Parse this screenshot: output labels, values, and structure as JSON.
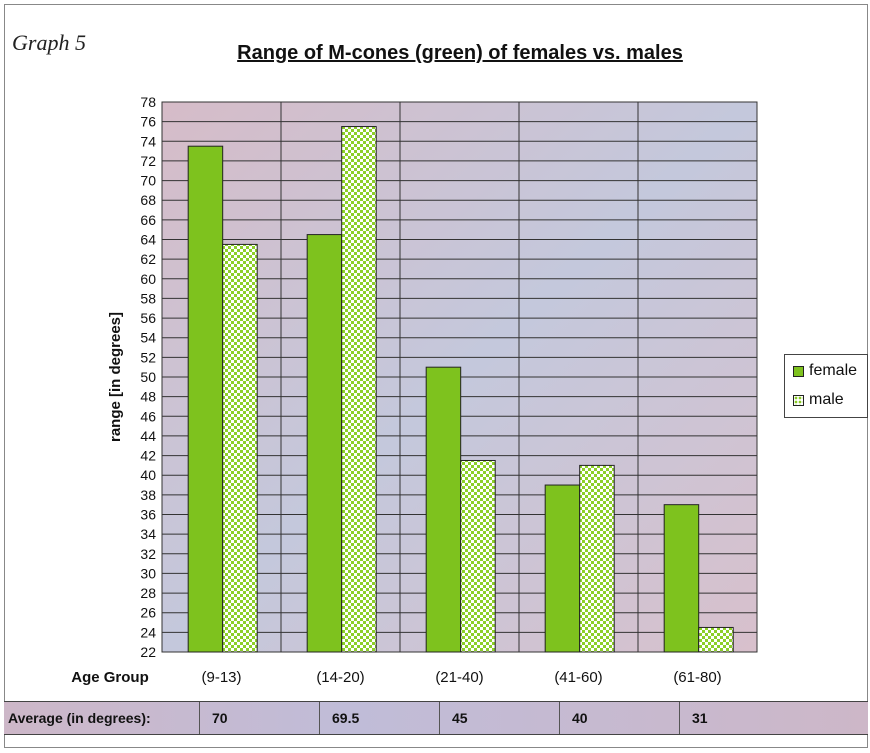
{
  "graph_label": "Graph 5",
  "colors": {
    "female": "#7ec21e",
    "male_pattern": "#88cc22",
    "plot_bg": "#c8c0d8"
  },
  "chart_data": {
    "type": "bar",
    "title": "Range of M-cones (green) of females vs. males",
    "xlabel": "Age Group",
    "ylabel": "range [in degrees]",
    "ylim": [
      22,
      78
    ],
    "ytick_step": 2,
    "categories": [
      "(9-13)",
      "(14-20)",
      "(21-40)",
      "(41-60)",
      "(61-80)"
    ],
    "series": [
      {
        "name": "female",
        "values": [
          73.5,
          64.5,
          51,
          39,
          37
        ]
      },
      {
        "name": "male",
        "values": [
          63.5,
          75.5,
          41.5,
          41,
          24.5
        ]
      }
    ],
    "grid": true,
    "legend_placement": "right"
  },
  "averages": {
    "label": "Average (in degrees):",
    "values": [
      "70",
      "69.5",
      "45",
      "40",
      "31"
    ]
  }
}
